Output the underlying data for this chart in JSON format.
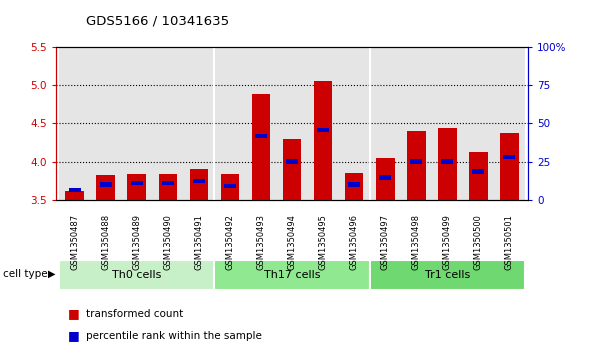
{
  "title": "GDS5166 / 10341635",
  "samples": [
    "GSM1350487",
    "GSM1350488",
    "GSM1350489",
    "GSM1350490",
    "GSM1350491",
    "GSM1350492",
    "GSM1350493",
    "GSM1350494",
    "GSM1350495",
    "GSM1350496",
    "GSM1350497",
    "GSM1350498",
    "GSM1350499",
    "GSM1350500",
    "GSM1350501"
  ],
  "red_values": [
    3.62,
    3.82,
    3.83,
    3.83,
    3.9,
    3.83,
    4.88,
    4.3,
    5.05,
    3.85,
    4.05,
    4.4,
    4.44,
    4.13,
    4.38
  ],
  "blue_values": [
    3.63,
    3.7,
    3.72,
    3.72,
    3.74,
    3.68,
    4.33,
    4.0,
    4.41,
    3.7,
    3.79,
    4.0,
    4.0,
    3.87,
    4.06
  ],
  "y_min": 3.5,
  "y_max": 5.5,
  "y_ticks_left": [
    3.5,
    4.0,
    4.5,
    5.0,
    5.5
  ],
  "y_ticks_right_labels": [
    "0",
    "25",
    "50",
    "75",
    "100%"
  ],
  "y_ticks_right_vals": [
    3.5,
    4.0,
    4.5,
    5.0,
    5.5
  ],
  "dotted_lines": [
    4.0,
    4.5,
    5.0
  ],
  "groups": [
    {
      "label": "Th0 cells",
      "start": 0,
      "end": 4,
      "color": "#c8f0c8"
    },
    {
      "label": "Th17 cells",
      "start": 5,
      "end": 9,
      "color": "#90e890"
    },
    {
      "label": "Tr1 cells",
      "start": 10,
      "end": 14,
      "color": "#70d870"
    }
  ],
  "bar_color": "#cc0000",
  "blue_color": "#0000cc",
  "col_bg_color": "#d0d0d0",
  "plot_bg": "#ffffff",
  "left_axis_color": "#cc0000",
  "right_axis_color": "#0000cc",
  "legend_items": [
    {
      "color": "#cc0000",
      "label": "transformed count"
    },
    {
      "color": "#0000cc",
      "label": "percentile rank within the sample"
    }
  ],
  "cell_type_label": "cell type",
  "bar_width": 0.6
}
